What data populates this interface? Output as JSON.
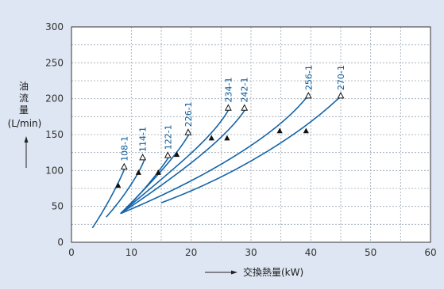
{
  "colors": {
    "background": "#dde6f2",
    "plot_background": "#ffffff",
    "grid": "#9aa6b4",
    "curve": "#1565a8",
    "marker": "#111111"
  },
  "chart_data": {
    "type": "line",
    "xlabel": "交換熱量(kW)",
    "ylabel_chars": [
      "油",
      "流",
      "量"
    ],
    "ylabel_unit": "(L/min)",
    "xlim": [
      0,
      60
    ],
    "ylim": [
      0,
      300
    ],
    "xticks": [
      "0",
      "10",
      "20",
      "30",
      "40",
      "50",
      "60"
    ],
    "yticks": [
      "0",
      "50",
      "100",
      "150",
      "200",
      "250",
      "300"
    ],
    "grid": true,
    "series": [
      {
        "name": "108-1",
        "x": [
          3.5,
          5.5,
          7.8,
          9.0
        ],
        "y": [
          20,
          45,
          80,
          105
        ],
        "filled_marker": [
          7.8,
          79
        ],
        "open_marker": [
          8.8,
          105
        ]
      },
      {
        "name": "114-1",
        "x": [
          5.8,
          8.5,
          11.5,
          12.3
        ],
        "y": [
          35,
          60,
          97,
          118
        ],
        "filled_marker": [
          11.2,
          97
        ],
        "open_marker": [
          11.9,
          118
        ]
      },
      {
        "name": "122-1",
        "x": [
          8.2,
          11.5,
          14.5,
          16.4
        ],
        "y": [
          40,
          65,
          97,
          120
        ],
        "filled_marker": [
          14.5,
          97
        ],
        "open_marker": [
          16.1,
          121
        ]
      },
      {
        "name": "226-1",
        "x": [
          8.2,
          13.0,
          17.8,
          19.8
        ],
        "y": [
          40,
          80,
          122,
          153
        ],
        "filled_marker": [
          17.6,
          122
        ],
        "open_marker": [
          19.5,
          153
        ]
      },
      {
        "name": "234-1",
        "x": [
          8.2,
          16.0,
          23.8,
          26.4
        ],
        "y": [
          40,
          95,
          145,
          187
        ],
        "filled_marker": [
          23.4,
          145
        ],
        "open_marker": [
          26.2,
          187
        ]
      },
      {
        "name": "242-1",
        "x": [
          8.2,
          18.0,
          26.0,
          29.2
        ],
        "y": [
          40,
          95,
          145,
          187
        ],
        "filled_marker": [
          26.0,
          145
        ],
        "open_marker": [
          28.9,
          187
        ]
      },
      {
        "name": "256-1",
        "x": [
          8.2,
          24.0,
          35.0,
          39.6
        ],
        "y": [
          40,
          95,
          155,
          205
        ],
        "filled_marker": [
          34.8,
          155
        ],
        "open_marker": [
          39.6,
          204
        ]
      },
      {
        "name": "270-1",
        "x": [
          15.0,
          28.0,
          39.0,
          45.2
        ],
        "y": [
          55,
          95,
          155,
          205
        ],
        "filled_marker": [
          39.2,
          155
        ],
        "open_marker": [
          45.0,
          204
        ]
      }
    ]
  }
}
